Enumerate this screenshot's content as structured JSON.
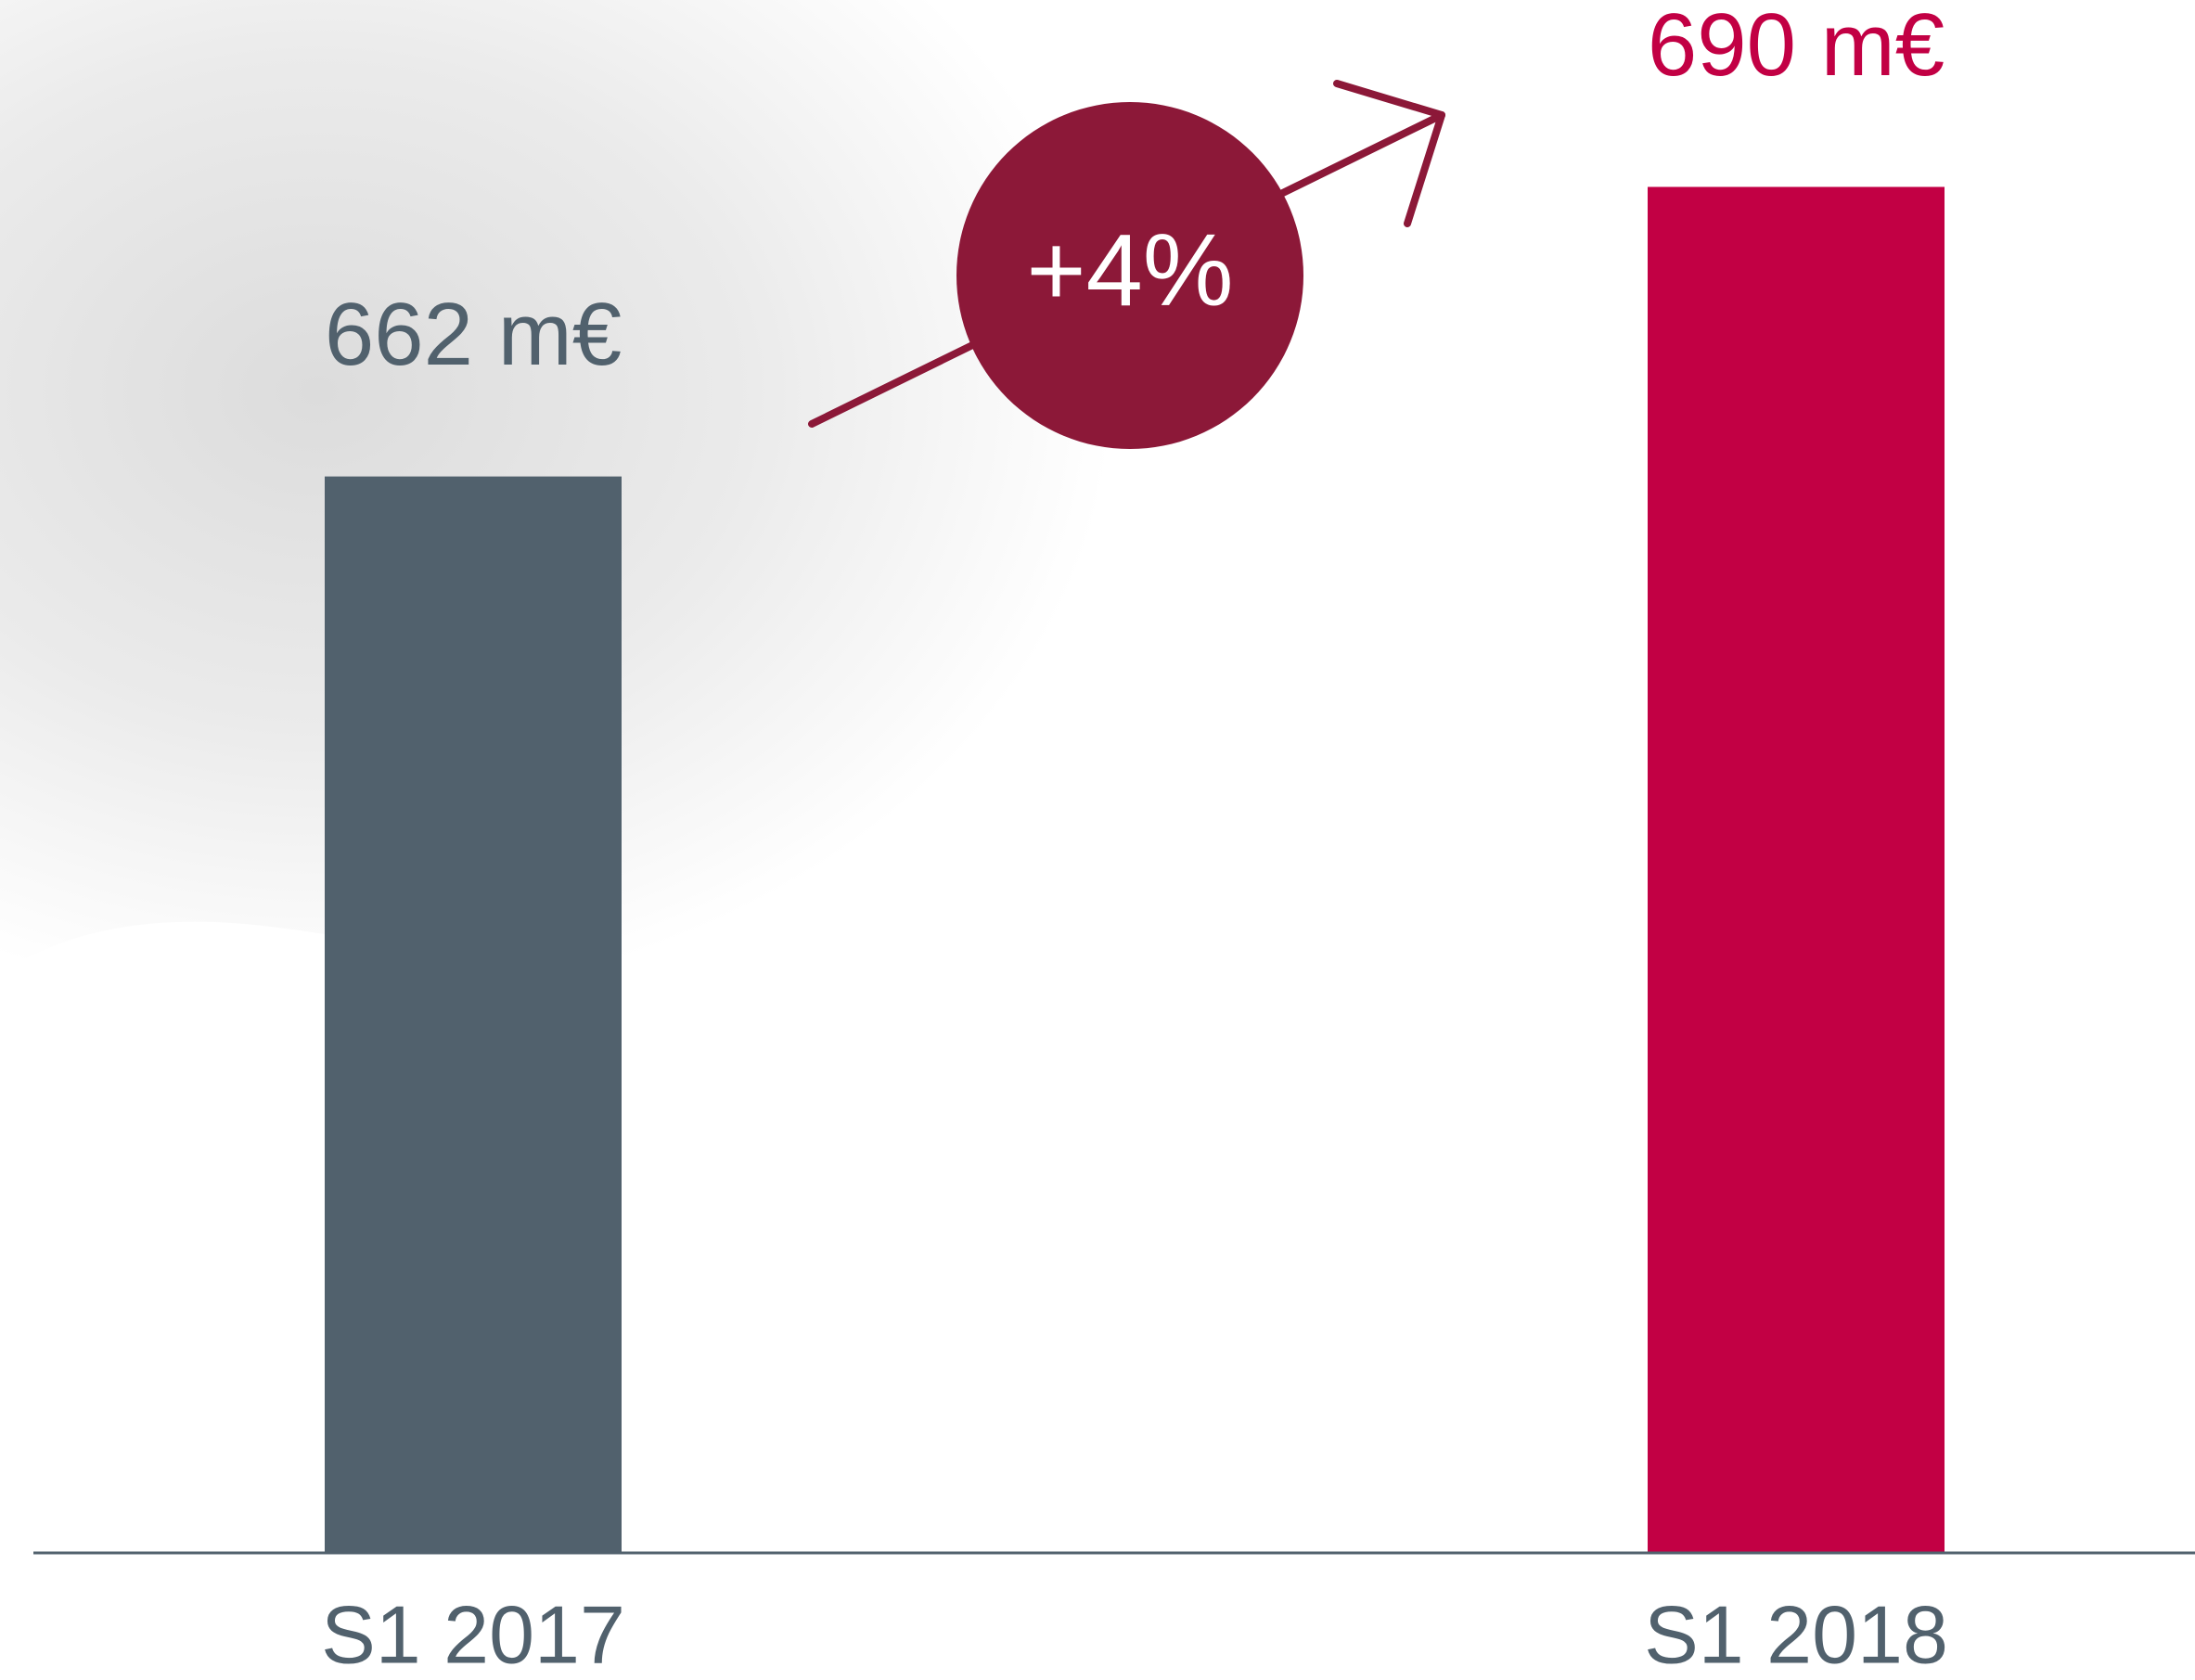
{
  "chart_data": {
    "type": "bar",
    "categories": [
      "S1 2017",
      "S1 2018"
    ],
    "values": [
      662,
      690
    ],
    "value_labels": [
      "662 m€",
      "690 m€"
    ],
    "colors": [
      "#51616d",
      "#c20044"
    ],
    "annotation": "+4%",
    "ylim": [
      558,
      700
    ]
  }
}
